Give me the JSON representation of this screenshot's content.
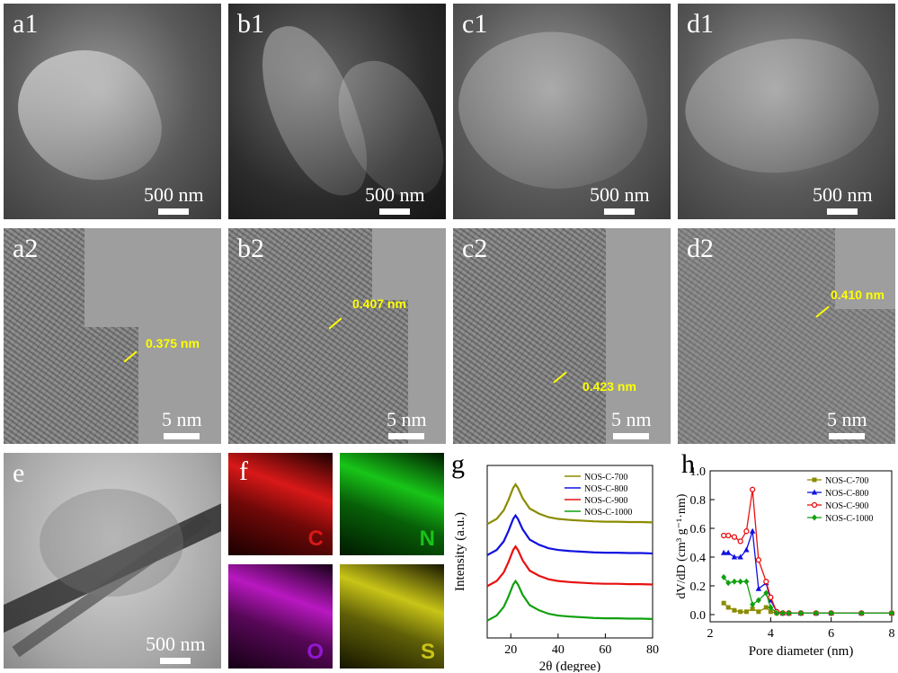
{
  "panels_top": [
    {
      "label": "a1",
      "scale": "500 nm"
    },
    {
      "label": "b1",
      "scale": "500 nm"
    },
    {
      "label": "c1",
      "scale": "500 nm"
    },
    {
      "label": "d1",
      "scale": "500 nm"
    }
  ],
  "panels_mid": [
    {
      "label": "a2",
      "scale": "5 nm",
      "spacing": "0.375 nm"
    },
    {
      "label": "b2",
      "scale": "5 nm",
      "spacing": "0.407 nm"
    },
    {
      "label": "c2",
      "scale": "5 nm",
      "spacing": "0.423 nm"
    },
    {
      "label": "d2",
      "scale": "5 nm",
      "spacing": "0.410 nm"
    }
  ],
  "panel_e": {
    "label": "e",
    "scale": "500 nm"
  },
  "panel_f": {
    "label": "f",
    "elements": [
      "C",
      "N",
      "O",
      "S"
    ],
    "colors": [
      "#d81818",
      "#18c418",
      "#b818c0",
      "#c8c418"
    ]
  },
  "chart_data": [
    {
      "type": "line",
      "panel": "g",
      "xlabel": "2θ (degree)",
      "ylabel": "Intensity (a.u.)",
      "xlim": [
        10,
        80
      ],
      "xticks": [
        20,
        40,
        60,
        80
      ],
      "series": [
        {
          "name": "NOS-C-700",
          "color": "#8b8b00",
          "x": [
            10,
            14,
            17,
            19,
            21,
            22,
            23,
            25,
            28,
            32,
            36,
            40,
            45,
            50,
            55,
            60,
            65,
            70,
            75,
            80
          ],
          "y": [
            3.3,
            3.45,
            3.7,
            4.0,
            4.35,
            4.45,
            4.35,
            4.05,
            3.75,
            3.6,
            3.5,
            3.45,
            3.42,
            3.4,
            3.38,
            3.37,
            3.37,
            3.36,
            3.36,
            3.35
          ]
        },
        {
          "name": "NOS-C-800",
          "color": "#1010e0",
          "x": [
            10,
            14,
            17,
            19,
            21,
            22,
            23,
            25,
            28,
            32,
            36,
            40,
            45,
            50,
            55,
            60,
            65,
            70,
            75,
            80
          ],
          "y": [
            2.4,
            2.55,
            2.8,
            3.1,
            3.45,
            3.55,
            3.45,
            3.15,
            2.85,
            2.7,
            2.6,
            2.55,
            2.52,
            2.5,
            2.48,
            2.47,
            2.47,
            2.46,
            2.46,
            2.45
          ]
        },
        {
          "name": "NOS-C-900",
          "color": "#e81010",
          "x": [
            10,
            14,
            17,
            19,
            21,
            22,
            23,
            25,
            28,
            32,
            36,
            40,
            45,
            50,
            55,
            60,
            65,
            70,
            75,
            80
          ],
          "y": [
            1.5,
            1.65,
            1.9,
            2.2,
            2.55,
            2.65,
            2.55,
            2.25,
            1.95,
            1.8,
            1.7,
            1.65,
            1.62,
            1.6,
            1.58,
            1.57,
            1.57,
            1.56,
            1.56,
            1.55
          ]
        },
        {
          "name": "NOS-C-1000",
          "color": "#10a010",
          "x": [
            10,
            14,
            17,
            19,
            21,
            22,
            23,
            25,
            28,
            32,
            36,
            40,
            45,
            50,
            55,
            60,
            65,
            70,
            75,
            80
          ],
          "y": [
            0.5,
            0.65,
            0.9,
            1.2,
            1.55,
            1.65,
            1.55,
            1.25,
            0.95,
            0.8,
            0.7,
            0.65,
            0.62,
            0.6,
            0.58,
            0.57,
            0.57,
            0.56,
            0.56,
            0.55
          ]
        }
      ]
    },
    {
      "type": "line",
      "panel": "h",
      "xlabel": "Pore diameter (nm)",
      "ylabel": "dV/dD (cm³ g⁻¹·nm)",
      "xlim": [
        2,
        8
      ],
      "ylim": [
        -0.05,
        1.0
      ],
      "xticks": [
        2,
        4,
        6,
        8
      ],
      "yticks": [
        0.0,
        0.2,
        0.4,
        0.6,
        0.8,
        1.0
      ],
      "series": [
        {
          "name": "NOS-C-700",
          "color": "#8b8b00",
          "marker": "square",
          "x": [
            2.45,
            2.6,
            2.8,
            3.0,
            3.2,
            3.4,
            3.6,
            3.85,
            4.0,
            4.2,
            4.4,
            4.6,
            5.0,
            5.5,
            6.0,
            7.0,
            8.0
          ],
          "y": [
            0.08,
            0.05,
            0.03,
            0.02,
            0.02,
            0.04,
            0.02,
            0.05,
            0.02,
            0.01,
            0.01,
            0.01,
            0.01,
            0.01,
            0.01,
            0.01,
            0.01
          ]
        },
        {
          "name": "NOS-C-800",
          "color": "#1010e0",
          "marker": "triangle",
          "x": [
            2.45,
            2.6,
            2.8,
            3.0,
            3.2,
            3.4,
            3.6,
            3.85,
            4.0,
            4.2,
            4.4,
            4.6,
            5.0,
            5.5,
            6.0,
            7.0,
            8.0
          ],
          "y": [
            0.43,
            0.43,
            0.4,
            0.4,
            0.45,
            0.58,
            0.18,
            0.22,
            0.1,
            0.02,
            0.01,
            0.01,
            0.01,
            0.01,
            0.01,
            0.01,
            0.01
          ]
        },
        {
          "name": "NOS-C-900",
          "color": "#e81010",
          "marker": "circle",
          "x": [
            2.45,
            2.6,
            2.8,
            3.0,
            3.2,
            3.4,
            3.6,
            3.85,
            4.0,
            4.2,
            4.4,
            4.6,
            5.0,
            5.5,
            6.0,
            7.0,
            8.0
          ],
          "y": [
            0.55,
            0.55,
            0.54,
            0.51,
            0.58,
            0.87,
            0.38,
            0.23,
            0.12,
            0.02,
            0.01,
            0.01,
            0.01,
            0.01,
            0.01,
            0.01,
            0.01
          ]
        },
        {
          "name": "NOS-C-1000",
          "color": "#10a010",
          "marker": "diamond",
          "x": [
            2.45,
            2.6,
            2.8,
            3.0,
            3.2,
            3.4,
            3.6,
            3.85,
            4.0,
            4.2,
            4.4,
            4.6,
            5.0,
            5.5,
            6.0,
            7.0,
            8.0
          ],
          "y": [
            0.26,
            0.22,
            0.23,
            0.23,
            0.23,
            0.07,
            0.1,
            0.15,
            0.05,
            0.01,
            0.01,
            0.01,
            0.01,
            0.01,
            0.01,
            0.01,
            0.01
          ]
        }
      ]
    }
  ]
}
